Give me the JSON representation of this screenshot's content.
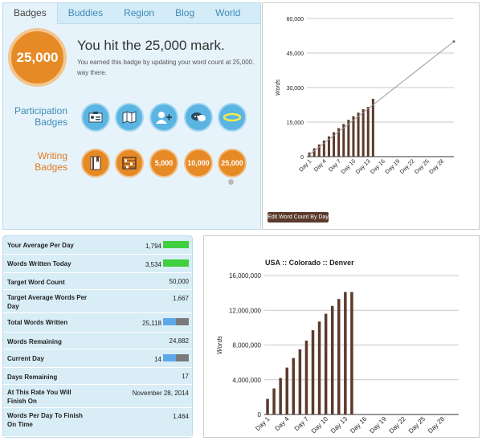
{
  "tabs": [
    "Badges",
    "Buddies",
    "Region",
    "Blog",
    "World"
  ],
  "badge": {
    "big": "25,000",
    "title": "You hit the 25,000 mark.",
    "desc_line1": "You earned this badge by updating your word count at 25,000.",
    "desc_line2": "way there."
  },
  "participation": {
    "line1": "Participation",
    "line2": "Badges",
    "icons": [
      "id-card-icon",
      "map-icon",
      "add-user-icon",
      "speech-bubbles-icon",
      "halo-icon"
    ]
  },
  "writing": {
    "line1": "Writing",
    "line2": "Badges",
    "icons": [
      "book-icon",
      "abacus-icon"
    ],
    "labels": [
      "5,000",
      "10,000",
      "25,000"
    ]
  },
  "edit_button": "Edit Word Count By Day",
  "stats": [
    {
      "label": "Your Average Per Day",
      "value": "1,794",
      "bar": "green",
      "fill": 1
    },
    {
      "label": "Words Written Today",
      "value": "3,534",
      "bar": "green",
      "fill": 1
    },
    {
      "label": "Target Word Count",
      "value": "50,000"
    },
    {
      "label": "Target Average Words Per Day",
      "value": "1,667"
    },
    {
      "label": "Total Words Written",
      "value": "25,118",
      "bar": "blue",
      "fill": 0.5
    },
    {
      "label": "Words Remaining",
      "value": "24,882"
    },
    {
      "label": "Current Day",
      "value": "14",
      "bar": "blue",
      "fill": 0.5
    },
    {
      "label": "Days Remaining",
      "value": "17"
    },
    {
      "label": "At This Rate You Will Finish On",
      "value": "November 28, 2014"
    },
    {
      "label": "Words Per Day To Finish On Time",
      "value": "1,464"
    }
  ],
  "chart_data": [
    {
      "type": "bar",
      "title": "",
      "ylabel": "Words",
      "xlabel": "",
      "ylim": [
        0,
        60000
      ],
      "yticks": [
        "0",
        "15,000",
        "30,000",
        "45,000",
        "60,000"
      ],
      "ytick_values": [
        0,
        15000,
        30000,
        45000,
        60000
      ],
      "xtick_labels": [
        "Day 1",
        "Day 4",
        "Day 7",
        "Day 10",
        "Day 13",
        "Day 16",
        "Day 19",
        "Day 22",
        "Day 25",
        "Day 28"
      ],
      "days": 30,
      "grid": true,
      "values": [
        1800,
        3600,
        5300,
        7000,
        8800,
        10600,
        12400,
        14200,
        16000,
        17600,
        19100,
        20600,
        21600,
        25118
      ],
      "target_line": [
        0,
        50000
      ]
    },
    {
      "type": "bar",
      "title": "USA :: Colorado :: Denver",
      "ylabel": "Words",
      "xlabel": "",
      "ylim": [
        0,
        16000000
      ],
      "yticks": [
        "0",
        "4,000,000",
        "8,000,000",
        "12,000,000",
        "16,000,000"
      ],
      "ytick_values": [
        0,
        4000000,
        8000000,
        12000000,
        16000000
      ],
      "xtick_labels": [
        "Day 1",
        "Day 4",
        "Day 7",
        "Day 10",
        "Day 13",
        "Day 16",
        "Day 19",
        "Day 22",
        "Day 25",
        "Day 28"
      ],
      "days": 30,
      "grid": true,
      "values": [
        1800000,
        3000000,
        4200000,
        5400000,
        6500000,
        7500000,
        8500000,
        9700000,
        10700000,
        11600000,
        12500000,
        13300000,
        14100000,
        14100000
      ]
    }
  ]
}
